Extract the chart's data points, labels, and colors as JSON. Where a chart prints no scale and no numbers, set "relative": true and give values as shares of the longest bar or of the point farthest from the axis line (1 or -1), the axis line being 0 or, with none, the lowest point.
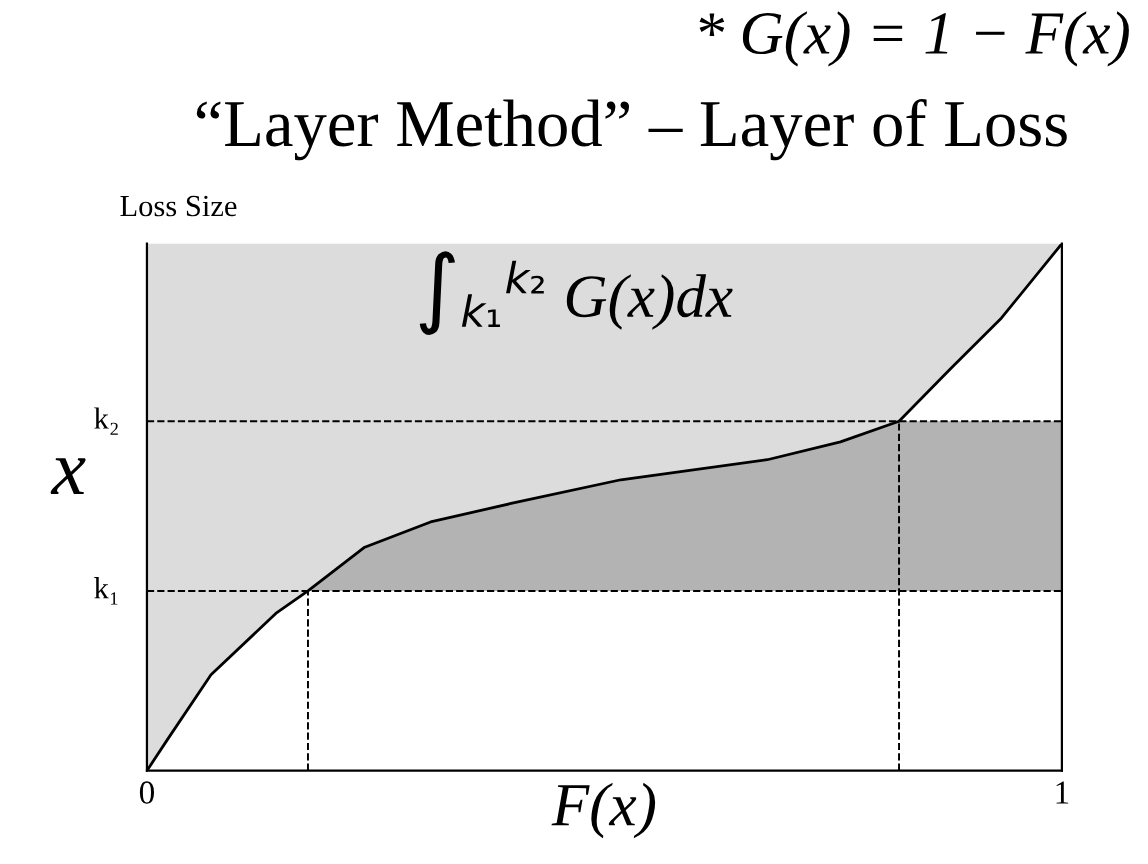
{
  "chart_data": {
    "type": "line",
    "title": "“Layer Method” – Layer of Loss",
    "xlabel": "F(x)",
    "ylabel": "Loss Size",
    "relative": true,
    "x": [
      0,
      0.022,
      0.07,
      0.142,
      0.176,
      0.238,
      0.31,
      0.398,
      0.518,
      0.678,
      0.758,
      0.822,
      0.878,
      0.934,
      1
    ],
    "series": [
      {
        "color": "#000000",
        "values": [
          0,
          0.058,
          0.182,
          0.3,
          0.341,
          0.424,
          0.472,
          0.507,
          0.552,
          0.59,
          0.624,
          0.663,
          0.762,
          0.859,
          1
        ]
      },
      {
        "type": "area",
        "color": "#b3b3b3",
        "x": [
          0.176,
          0.238,
          0.31,
          0.398,
          0.518,
          0.678,
          0.758,
          0.822,
          1
        ],
        "values": [
          0.341,
          0.424,
          0.472,
          0.507,
          0.552,
          0.59,
          0.624,
          0.663,
          0.663
        ]
      }
    ],
    "xlim": [
      0,
      1
    ],
    "xticks": [
      0,
      1
    ],
    "ref_lines": [
      {
        "axis": "y",
        "value": 0.341,
        "label": "k₁",
        "line_style": "dashed",
        "color": "#000000"
      },
      {
        "axis": "y",
        "value": 0.663,
        "label": "k₂",
        "line_style": "dashed",
        "color": "#000000"
      },
      {
        "axis": "x",
        "value": 0.176,
        "line_style": "dashed",
        "color": "#000000"
      },
      {
        "axis": "x",
        "value": 0.822,
        "line_style": "dashed",
        "color": "#000000"
      }
    ],
    "annotations": [
      "* G(x) = 1 − F(x)",
      "∫$_{k₁}$$^{k₂}$ G(x)dx",
      "x"
    ],
    "grid": false,
    "legend": false,
    "marker": "none",
    "line_style": "solid"
  }
}
